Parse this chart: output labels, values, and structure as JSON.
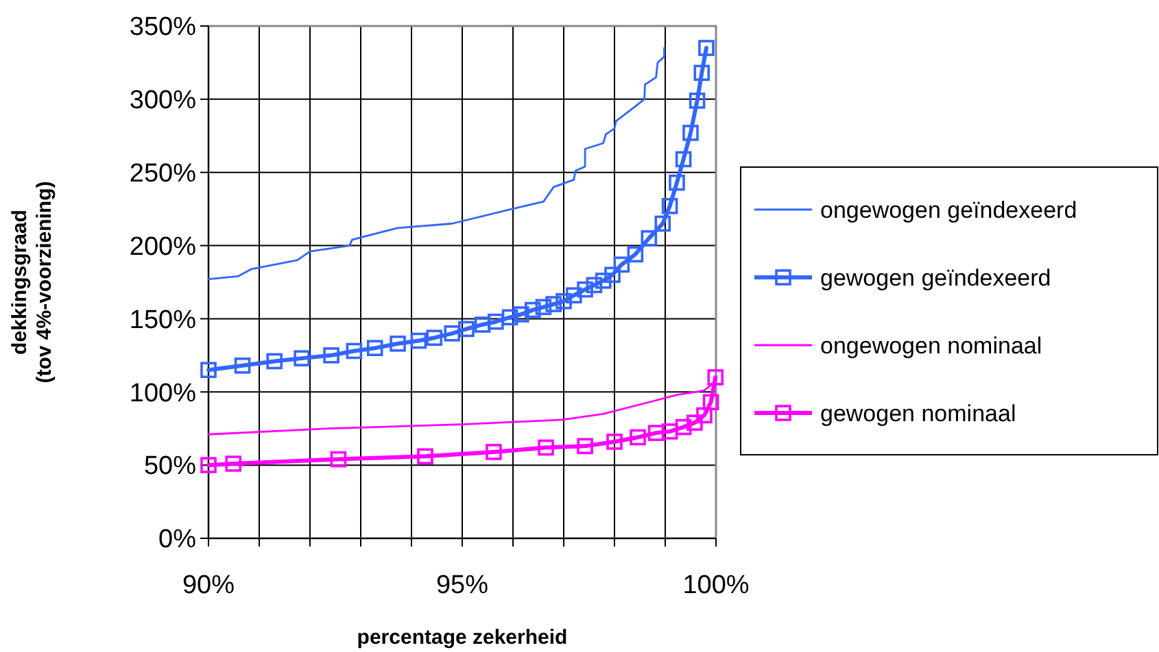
{
  "chart_data": {
    "type": "line",
    "xlabel": "percentage zekerheid",
    "ylabel": "dekkingsgraad\n(tov 4%-voorziening)",
    "xlim": [
      90,
      100
    ],
    "ylim": [
      0,
      350
    ],
    "xticks": [
      {
        "value": 90,
        "label": "90%"
      },
      {
        "value": 91,
        "label": null
      },
      {
        "value": 92,
        "label": null
      },
      {
        "value": 93,
        "label": null
      },
      {
        "value": 94,
        "label": null
      },
      {
        "value": 95,
        "label": "95%"
      },
      {
        "value": 96,
        "label": null
      },
      {
        "value": 97,
        "label": null
      },
      {
        "value": 98,
        "label": null
      },
      {
        "value": 99,
        "label": null
      },
      {
        "value": 100,
        "label": "100%"
      }
    ],
    "yticks": [
      {
        "value": 0,
        "label": "0%"
      },
      {
        "value": 50,
        "label": "50%"
      },
      {
        "value": 100,
        "label": "100%"
      },
      {
        "value": 150,
        "label": "150%"
      },
      {
        "value": 200,
        "label": "200%"
      },
      {
        "value": 250,
        "label": "250%"
      },
      {
        "value": 300,
        "label": "300%"
      },
      {
        "value": 350,
        "label": "350%"
      }
    ],
    "grid": true,
    "legend": "right",
    "series": [
      {
        "name": "ongewogen geïndexeerd",
        "color": "#3366ff",
        "marker": "none",
        "x": [
          90,
          90.58,
          90.85,
          91.75,
          92,
          92.78,
          92.83,
          93.28,
          93.73,
          94.8,
          95.98,
          96.6,
          96.8,
          97.2,
          97.23,
          97.42,
          97.42,
          97.78,
          97.83,
          98,
          98.03,
          98.37,
          98.59,
          98.6,
          98.82,
          98.85,
          98.98,
          98.98
        ],
        "values": [
          177,
          179,
          184,
          190,
          196,
          200,
          204,
          208,
          212,
          215,
          225,
          230,
          240,
          245,
          251,
          254,
          266,
          270,
          276,
          280,
          285,
          294,
          300,
          310,
          315,
          325,
          329,
          335
        ]
      },
      {
        "name": "gewogen geïndexeerd",
        "color": "#3366ff",
        "marker": "square",
        "x": [
          90,
          90.67,
          91.3,
          91.84,
          92.42,
          92.87,
          93.28,
          93.73,
          94.14,
          94.45,
          94.8,
          95.08,
          95.4,
          95.66,
          95.94,
          96.16,
          96.39,
          96.6,
          96.8,
          97,
          97.2,
          97.42,
          97.6,
          97.78,
          97.96,
          98.14,
          98.41,
          98.68,
          98.95,
          99.09,
          99.23,
          99.36,
          99.5,
          99.63,
          99.72,
          99.81
        ],
        "values": [
          115,
          118,
          121,
          123,
          125,
          128,
          130,
          133,
          135,
          137,
          140,
          143,
          146,
          148,
          151,
          153,
          156,
          158,
          160,
          162,
          166,
          170,
          173,
          176,
          180,
          187,
          194,
          205,
          215,
          227,
          243,
          259,
          277,
          299,
          318,
          335
        ]
      },
      {
        "name": "ongewogen nominaal",
        "color": "#ff00ff",
        "marker": "none",
        "x": [
          90,
          92.38,
          95.08,
          96.97,
          97.78,
          98.68,
          99.23,
          99.77,
          99.95,
          100
        ],
        "values": [
          71,
          75,
          78,
          81,
          85,
          93,
          98,
          101,
          106,
          108
        ]
      },
      {
        "name": "gewogen nominaal",
        "color": "#ff00ff",
        "marker": "square",
        "x": [
          90,
          90.49,
          92.56,
          94.27,
          95.62,
          96.65,
          97.42,
          98,
          98.46,
          98.82,
          99.09,
          99.36,
          99.58,
          99.77,
          99.9,
          99.99
        ],
        "values": [
          50,
          51,
          54,
          56,
          59,
          62,
          63,
          66,
          69,
          72,
          73,
          76,
          79,
          84,
          93,
          110
        ]
      }
    ]
  }
}
